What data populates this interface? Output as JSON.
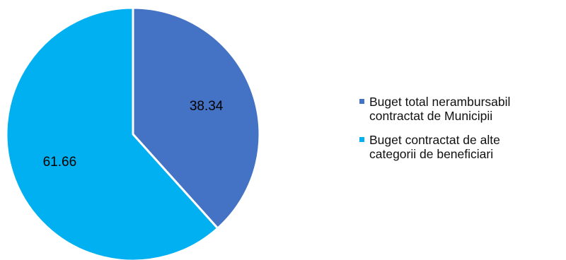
{
  "chart_data": {
    "type": "pie",
    "title": "",
    "categories": [
      "Buget total nerambursabil contractat de Municipii",
      "Buget contractat de alte categorii de beneficiari"
    ],
    "values": [
      38.34,
      61.66
    ],
    "labels": [
      "38.34",
      "61.66"
    ],
    "colors": [
      "#4472C4",
      "#00B0F0"
    ],
    "legend_position": "right",
    "start_angle_deg": 0,
    "direction": "clockwise"
  },
  "legend": {
    "items": [
      {
        "text": "Buget total nerambursabil\ncontractat de Municipii",
        "color": "#4472C4"
      },
      {
        "text": "Buget contractat de alte\ncategorii de beneficiari",
        "color": "#00B0F0"
      }
    ]
  }
}
